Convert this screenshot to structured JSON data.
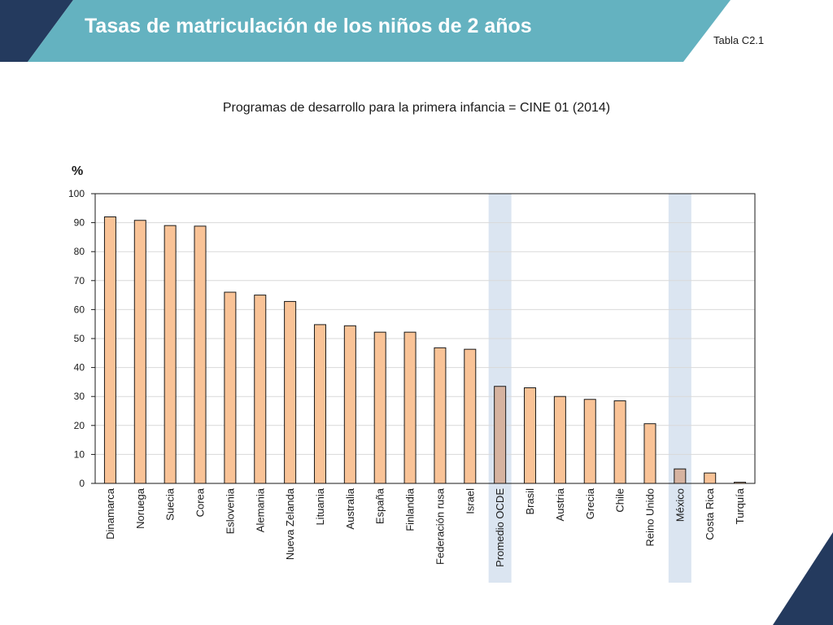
{
  "header": {
    "title": "Tasas de matriculación de los niños de 2 años",
    "table_ref": "Tabla C2.1"
  },
  "colors": {
    "navy": "#243a5e",
    "teal": "#64b2c0",
    "bar": "#f9c397",
    "bar_highlight": "#d6b3a0",
    "highlight_band": "#dbe5f1"
  },
  "chart_data": {
    "type": "bar",
    "title": "Programas de desarrollo para la primera infancia = CINE 01 (2014)",
    "ylabel": "%",
    "ylim": [
      0,
      100
    ],
    "yticks": [
      0,
      10,
      20,
      30,
      40,
      50,
      60,
      70,
      80,
      90,
      100
    ],
    "grid": true,
    "categories": [
      "Dinamarca",
      "Noruega",
      "Suecia",
      "Corea",
      "Eslovenia",
      "Alemania",
      "Nueva Zelanda",
      "Lituania",
      "Australia",
      "España",
      "Finlandia",
      "Federación rusa",
      "Israel",
      "Promedio OCDE",
      "Brasil",
      "Austria",
      "Grecia",
      "Chile",
      "Reino Unido",
      "México",
      "Costa Rica",
      "Turquía"
    ],
    "values": [
      92,
      90.8,
      89,
      88.8,
      66,
      65,
      62.8,
      54.8,
      54.4,
      52.2,
      52.2,
      46.8,
      46.3,
      33.5,
      33,
      30,
      29,
      28.5,
      20.6,
      5,
      3.6,
      0.4
    ],
    "highlighted": [
      "Promedio OCDE",
      "México"
    ]
  }
}
